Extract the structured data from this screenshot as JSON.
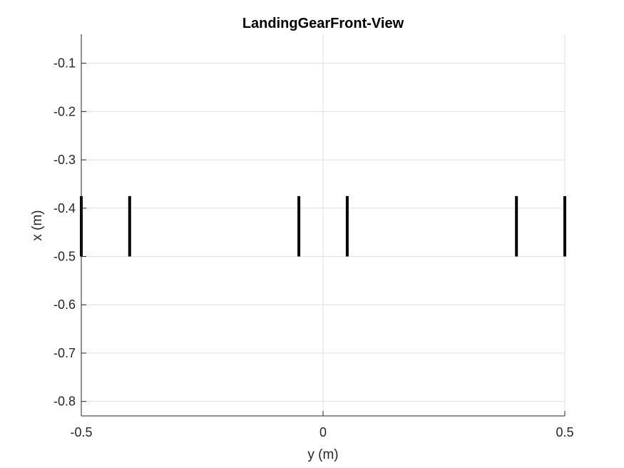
{
  "chart_data": {
    "type": "line",
    "title": "LandingGearFront-View",
    "xlabel": "y (m)",
    "ylabel": "x (m)",
    "xlim": [
      -0.5,
      0.5
    ],
    "ylim": [
      -0.83,
      -0.04
    ],
    "xticks": [
      -0.5,
      0,
      0.5
    ],
    "xtick_labels": [
      "-0.5",
      "0",
      "0.5"
    ],
    "yticks": [
      -0.1,
      -0.2,
      -0.3,
      -0.4,
      -0.5,
      -0.6,
      -0.7,
      -0.8
    ],
    "ytick_labels": [
      "-0.1",
      "-0.2",
      "-0.3",
      "-0.4",
      "-0.5",
      "-0.6",
      "-0.7",
      "-0.8"
    ],
    "grid": true,
    "series": [
      {
        "x": [
          -0.5,
          -0.5
        ],
        "y": [
          -0.375,
          -0.5
        ],
        "color": "#000000"
      },
      {
        "x": [
          -0.4,
          -0.4
        ],
        "y": [
          -0.375,
          -0.5
        ],
        "color": "#000000"
      },
      {
        "x": [
          -0.05,
          -0.05
        ],
        "y": [
          -0.375,
          -0.5
        ],
        "color": "#000000"
      },
      {
        "x": [
          0.05,
          0.05
        ],
        "y": [
          -0.375,
          -0.5
        ],
        "color": "#000000"
      },
      {
        "x": [
          0.4,
          0.4
        ],
        "y": [
          -0.375,
          -0.5
        ],
        "color": "#000000"
      },
      {
        "x": [
          0.5,
          0.5
        ],
        "y": [
          -0.375,
          -0.5
        ],
        "color": "#000000"
      }
    ]
  }
}
